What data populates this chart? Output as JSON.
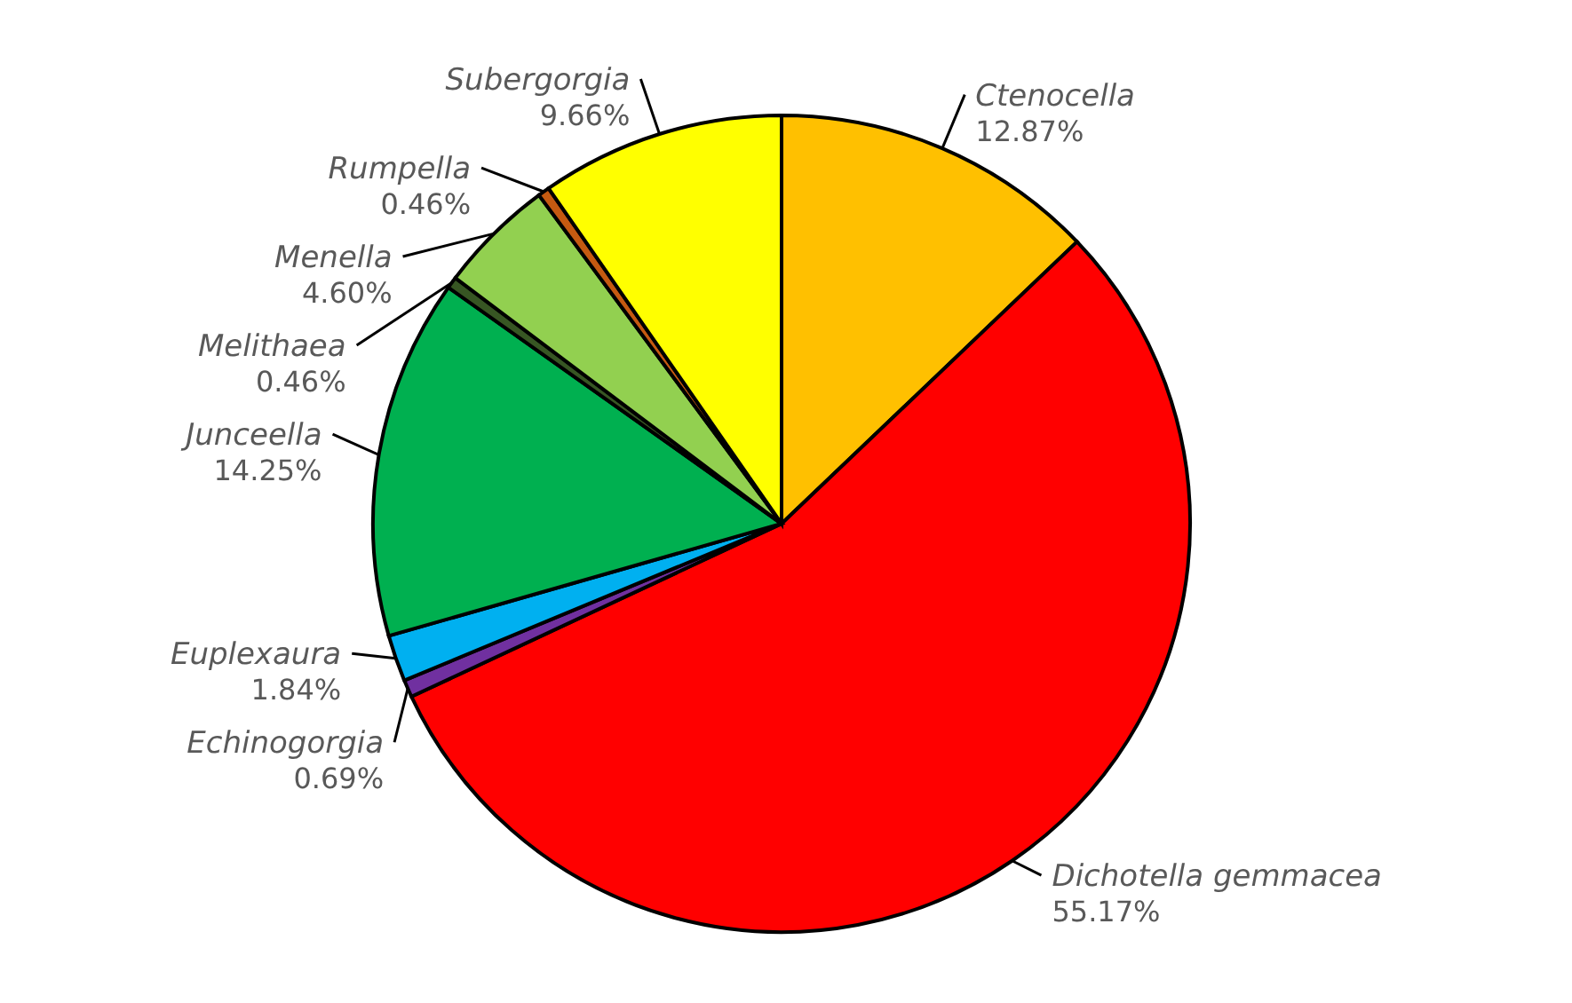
{
  "chart_data": {
    "type": "pie",
    "categories": [
      "Ctenocella",
      "Dichotella gemmacea",
      "Echinogorgia",
      "Euplexaura",
      "Junceella",
      "Melithaea",
      "Menella",
      "Rumpella",
      "Subergorgia"
    ],
    "values": [
      12.87,
      55.17,
      0.69,
      1.84,
      14.25,
      0.46,
      4.6,
      0.46,
      9.66
    ],
    "value_labels": [
      "12.87%",
      "55.17%",
      "0.69%",
      "1.84%",
      "14.25%",
      "0.46%",
      "4.60%",
      "0.46%",
      "9.66%"
    ],
    "colors": [
      "#ffc000",
      "#ff0000",
      "#7030a0",
      "#00b0f0",
      "#00b050",
      "#375623",
      "#92d050",
      "#c55a11",
      "#ffff00"
    ],
    "legend": false
  }
}
